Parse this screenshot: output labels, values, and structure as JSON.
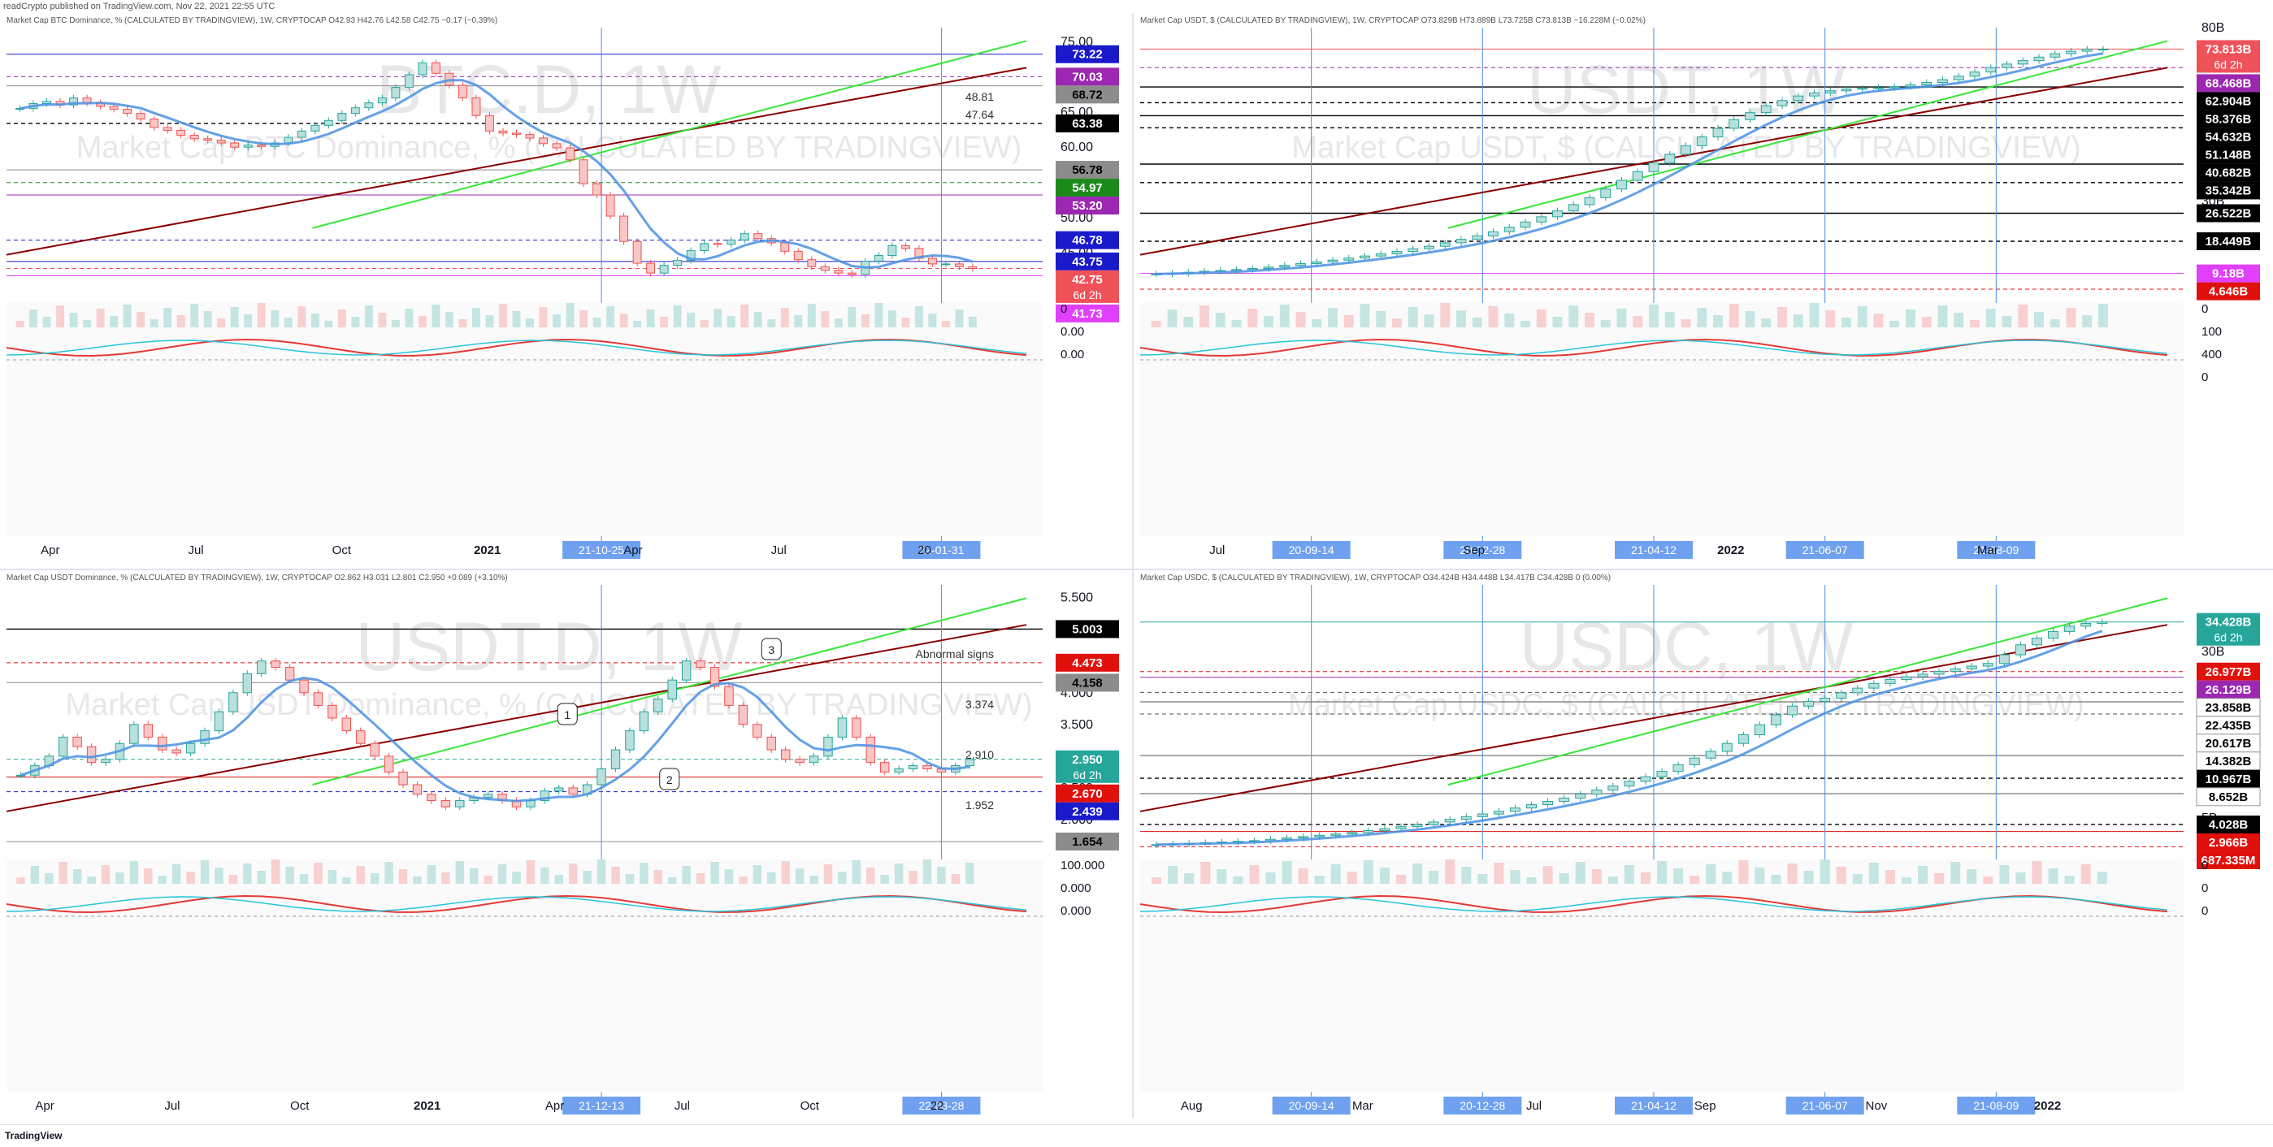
{
  "header": {
    "published_line": "readCrypto published on TradingView.com, Nov 22, 2021 22:55 UTC"
  },
  "footer": {
    "brand": "TradingView"
  },
  "colors": {
    "bull": "#26a69a",
    "bear": "#ef5350",
    "band_blue": "#4a90e2",
    "band_red": "#f4a6a6",
    "trend_red": "#8b0000",
    "trend_green": "#39e639",
    "grid_blue": "#2962ff"
  },
  "chart_data": [
    {
      "id": "btc_d",
      "type": "candlestick",
      "info_line": "Market Cap BTC Dominance, % (CALCULATED BY TRADINGVIEW), 1W, CRYPTOCAP   O42.93  H42.76  L42.58  C42.75  −0.17 (−0.39%)",
      "watermark_symbol": "BTC.D, 1W",
      "watermark_desc": "Market Cap BTC Dominance, % (CALCULATED BY TRADINGVIEW)",
      "ylim": [
        39,
        77
      ],
      "y_ticks": [
        "75.00",
        "70.00",
        "65.00",
        "60.00",
        "55.00",
        "50.00",
        "45.00"
      ],
      "x_ticks": [
        "Apr",
        "Jul",
        "Oct",
        "2021",
        "Apr",
        "Jul",
        "20"
      ],
      "date_labels": [
        "21-10-25",
        "22-01-31"
      ],
      "closes": [
        65.5,
        66.2,
        66.5,
        66.0,
        67.0,
        66.3,
        65.8,
        65.4,
        64.8,
        64.0,
        62.8,
        62.4,
        61.7,
        61.2,
        61.0,
        60.6,
        60.0,
        60.3,
        60.1,
        60.6,
        61.4,
        62.3,
        63.1,
        63.8,
        64.8,
        65.6,
        66.3,
        67.0,
        68.5,
        70.3,
        72.0,
        70.5,
        68.8,
        67.0,
        64.5,
        62.3,
        62.0,
        61.8,
        61.3,
        60.5,
        59.9,
        58.2,
        54.8,
        53.2,
        50.2,
        46.6,
        43.5,
        42.1,
        43.2,
        43.9,
        45.3,
        46.3,
        46.2,
        46.8,
        47.7,
        47.0,
        46.4,
        45.2,
        44.0,
        43.0,
        42.5,
        42.1,
        41.9,
        43.8,
        44.6,
        46.0,
        45.6,
        44.2,
        43.4,
        43.4,
        43.0,
        42.75
      ],
      "levels": [
        {
          "value": 73.22,
          "label": "73.22",
          "color": "#1a1acb",
          "text_color": "#ffffff"
        },
        {
          "value": 70.03,
          "label": "70.03",
          "color": "#9c27b0",
          "text_color": "#ffffff"
        },
        {
          "value": 68.72,
          "label": "68.72",
          "color": "#8c8c8c",
          "text_color": "#000000"
        },
        {
          "value": 63.38,
          "label": "63.38",
          "color": "#000000",
          "text_color": "#ffffff"
        },
        {
          "value": 56.78,
          "label": "56.78",
          "color": "#8c8c8c",
          "text_color": "#000000"
        },
        {
          "value": 54.97,
          "label": "54.97",
          "color": "#1b8a1b",
          "text_color": "#ffffff"
        },
        {
          "value": 53.2,
          "label": "53.20",
          "color": "#9c27b0",
          "text_color": "#ffffff"
        },
        {
          "value": 46.78,
          "label": "46.78",
          "color": "#1a1acb",
          "text_color": "#ffffff"
        },
        {
          "value": 43.75,
          "label": "43.75",
          "color": "#1a1acb",
          "text_color": "#ffffff"
        },
        {
          "value": 42.75,
          "label": "42.75",
          "color": "#f0525a",
          "text_color": "#ffffff",
          "sub": "6d 2h"
        },
        {
          "value": 41.73,
          "label": "41.73",
          "color": "#e040fb",
          "text_color": "#ffffff"
        }
      ],
      "annotations": [
        "48.81",
        "47.64"
      ],
      "lower_labels": [
        "0",
        "0.00",
        "0.00"
      ]
    },
    {
      "id": "usdt_cap",
      "type": "candlestick",
      "info_line": "Market Cap USDT, $ (CALCULATED BY TRADINGVIEW), 1W, CRYPTOCAP   O73.829B  H73.889B  L73.725B  C73.813B  −16.228M (−0.02%)",
      "watermark_symbol": "USDT, 1W",
      "watermark_desc": "Market Cap USDT, $ (CALCULATED BY TRADINGVIEW)",
      "ylim": [
        3,
        80
      ],
      "y_ticks": [
        "80B",
        "30B"
      ],
      "x_ticks": [
        "Jul",
        "Sep",
        "2022",
        "Mar"
      ],
      "date_labels": [
        "20-09-14",
        "20-12-28",
        "21-04-12",
        "21-06-07",
        "21-08-09"
      ],
      "closes": [
        9.0,
        9.2,
        9.5,
        9.8,
        10.0,
        10.3,
        10.6,
        11.0,
        11.5,
        12.0,
        12.5,
        13.0,
        13.6,
        14.2,
        14.8,
        15.5,
        16.3,
        17.0,
        18.0,
        19.0,
        20.0,
        21.2,
        22.5,
        24.0,
        25.5,
        27.2,
        29.0,
        31.0,
        33.5,
        36.0,
        38.5,
        41.0,
        43.5,
        46.0,
        48.5,
        51.0,
        53.5,
        55.5,
        57.5,
        59.0,
        60.3,
        61.2,
        61.8,
        62.3,
        62.5,
        62.7,
        63.0,
        63.5,
        64.2,
        65.0,
        66.0,
        67.2,
        68.5,
        69.5,
        70.5,
        71.5,
        72.5,
        73.2,
        73.8,
        73.8
      ],
      "levels": [
        {
          "value": 73.813,
          "label": "73.813B",
          "color": "#f0525a",
          "text_color": "#ffffff",
          "sub": "6d 2h"
        },
        {
          "value": 68.468,
          "label": "68.468B",
          "color": "#9c27b0",
          "text_color": "#ffffff"
        },
        {
          "value": 62.904,
          "label": "62.904B",
          "color": "#000000",
          "text_color": "#ffffff"
        },
        {
          "value": 58.376,
          "label": "58.376B",
          "color": "#000000",
          "text_color": "#ffffff"
        },
        {
          "value": 54.632,
          "label": "54.632B",
          "color": "#000000",
          "text_color": "#ffffff"
        },
        {
          "value": 51.148,
          "label": "51.148B",
          "color": "#000000",
          "text_color": "#ffffff"
        },
        {
          "value": 40.682,
          "label": "40.682B",
          "color": "#000000",
          "text_color": "#ffffff"
        },
        {
          "value": 35.342,
          "label": "35.342B",
          "color": "#000000",
          "text_color": "#ffffff"
        },
        {
          "value": 26.522,
          "label": "26.522B",
          "color": "#000000",
          "text_color": "#ffffff"
        },
        {
          "value": 18.449,
          "label": "18.449B",
          "color": "#000000",
          "text_color": "#ffffff"
        },
        {
          "value": 9.18,
          "label": "9.18B",
          "color": "#e040fb",
          "text_color": "#ffffff"
        },
        {
          "value": 4.646,
          "label": "4.646B",
          "color": "#e0110d",
          "text_color": "#ffffff"
        }
      ],
      "annotations": [],
      "lower_labels": [
        "0",
        "100",
        "400",
        "0"
      ]
    },
    {
      "id": "usdt_d",
      "type": "candlestick",
      "info_line": "Market Cap USDT Dominance, % (CALCULATED BY TRADINGVIEW), 1W, CRYPTOCAP   O2.862  H3.031  L2.801  C2.950  +0.089 (+3.10%)",
      "watermark_symbol": "USDT.D, 1W",
      "watermark_desc": "Market Cap USDT Dominance, % (CALCULATED BY TRADINGVIEW)",
      "ylim": [
        1.5,
        5.7
      ],
      "y_ticks": [
        "5.500",
        "4.500",
        "4.000",
        "3.500",
        "3.000",
        "2.500",
        "2.000"
      ],
      "x_ticks": [
        "Apr",
        "Jul",
        "Oct",
        "2021",
        "Apr",
        "Jul",
        "Oct",
        "22"
      ],
      "date_labels": [
        "21-12-13",
        "22-03-28"
      ],
      "closes": [
        2.7,
        2.85,
        3.0,
        3.3,
        3.15,
        2.9,
        2.95,
        3.2,
        3.5,
        3.3,
        3.1,
        3.05,
        3.2,
        3.4,
        3.7,
        4.0,
        4.3,
        4.5,
        4.4,
        4.2,
        4.0,
        3.8,
        3.6,
        3.4,
        3.2,
        3.0,
        2.75,
        2.55,
        2.4,
        2.3,
        2.2,
        2.3,
        2.35,
        2.4,
        2.3,
        2.2,
        2.3,
        2.45,
        2.5,
        2.4,
        2.55,
        2.8,
        3.1,
        3.4,
        3.7,
        3.9,
        4.2,
        4.5,
        4.4,
        4.1,
        3.8,
        3.5,
        3.3,
        3.1,
        2.95,
        2.9,
        3.0,
        3.3,
        3.6,
        3.3,
        2.9,
        2.75,
        2.8,
        2.85,
        2.8,
        2.75,
        2.85,
        2.95
      ],
      "levels": [
        {
          "value": 5.003,
          "label": "5.003",
          "color": "#000000",
          "text_color": "#ffffff"
        },
        {
          "value": 4.473,
          "label": "4.473",
          "color": "#e0110d",
          "text_color": "#ffffff"
        },
        {
          "value": 4.158,
          "label": "4.158",
          "color": "#8c8c8c",
          "text_color": "#000000"
        },
        {
          "value": 2.95,
          "label": "2.950",
          "color": "#26a69a",
          "text_color": "#ffffff",
          "sub": "6d 2h"
        },
        {
          "value": 2.67,
          "label": "2.670",
          "color": "#e0110d",
          "text_color": "#ffffff"
        },
        {
          "value": 2.439,
          "label": "2.439",
          "color": "#1a1acb",
          "text_color": "#ffffff"
        },
        {
          "value": 1.654,
          "label": "1.654",
          "color": "#8c8c8c",
          "text_color": "#000000"
        }
      ],
      "annotations": [
        "Abnormal signs",
        "3.374",
        "2.910",
        "1.952"
      ],
      "callouts": [
        "1",
        "2",
        "3"
      ],
      "lower_labels": [
        "100.000",
        "0.000",
        "0.000"
      ]
    },
    {
      "id": "usdc_cap",
      "type": "candlestick",
      "info_line": "Market Cap USDC, $ (CALCULATED BY TRADINGVIEW), 1W, CRYPTOCAP   O34.424B  H34.448B  L34.417B  C34.428B  0 (0.00%)",
      "watermark_symbol": "USDC, 1W",
      "watermark_desc": "Market Cap USDC, $ (CALCULATED BY TRADINGVIEW)",
      "ylim": [
        0,
        40
      ],
      "y_ticks": [
        "30B",
        "5B"
      ],
      "x_ticks": [
        "Aug",
        "Mar",
        "Jul",
        "Sep",
        "Nov",
        "2022"
      ],
      "date_labels": [
        "20-09-14",
        "20-12-28",
        "21-04-12",
        "21-06-07",
        "21-08-09"
      ],
      "closes": [
        1.0,
        1.1,
        1.2,
        1.3,
        1.4,
        1.5,
        1.6,
        1.8,
        2.0,
        2.2,
        2.4,
        2.6,
        2.8,
        3.1,
        3.4,
        3.7,
        4.0,
        4.4,
        4.8,
        5.2,
        5.6,
        6.0,
        6.5,
        7.0,
        7.5,
        8.0,
        8.6,
        9.2,
        9.8,
        10.5,
        11.2,
        12.0,
        13.0,
        14.0,
        15.0,
        16.2,
        17.5,
        19.0,
        20.5,
        21.8,
        22.5,
        23.0,
        23.8,
        24.5,
        25.2,
        25.8,
        26.2,
        26.6,
        27.0,
        27.4,
        27.8,
        28.2,
        29.5,
        31.0,
        32.0,
        33.0,
        33.8,
        34.2,
        34.428
      ],
      "levels": [
        {
          "value": 34.428,
          "label": "34.428B",
          "color": "#26a69a",
          "text_color": "#ffffff",
          "sub": "6d 2h"
        },
        {
          "value": 26.977,
          "label": "26.977B",
          "color": "#e0110d",
          "text_color": "#ffffff"
        },
        {
          "value": 26.129,
          "label": "26.129B",
          "color": "#9c27b0",
          "text_color": "#ffffff"
        },
        {
          "value": 23.858,
          "label": "23.858B",
          "color": "#ffffff",
          "text_color": "#000000"
        },
        {
          "value": 22.435,
          "label": "22.435B",
          "color": "#ffffff",
          "text_color": "#000000"
        },
        {
          "value": 20.617,
          "label": "20.617B",
          "color": "#ffffff",
          "text_color": "#000000"
        },
        {
          "value": 14.382,
          "label": "14.382B",
          "color": "#ffffff",
          "text_color": "#000000"
        },
        {
          "value": 10.967,
          "label": "10.967B",
          "color": "#000000",
          "text_color": "#ffffff"
        },
        {
          "value": 8.652,
          "label": "8.652B",
          "color": "#ffffff",
          "text_color": "#000000"
        },
        {
          "value": 4.028,
          "label": "4.028B",
          "color": "#000000",
          "text_color": "#ffffff"
        },
        {
          "value": 2.966,
          "label": "2.966B",
          "color": "#e0110d",
          "text_color": "#ffffff"
        },
        {
          "value": 0.687335,
          "label": "687.335M",
          "color": "#e0110d",
          "text_color": "#ffffff"
        }
      ],
      "annotations": [],
      "lower_labels": [
        "0",
        "0",
        "0"
      ]
    }
  ]
}
